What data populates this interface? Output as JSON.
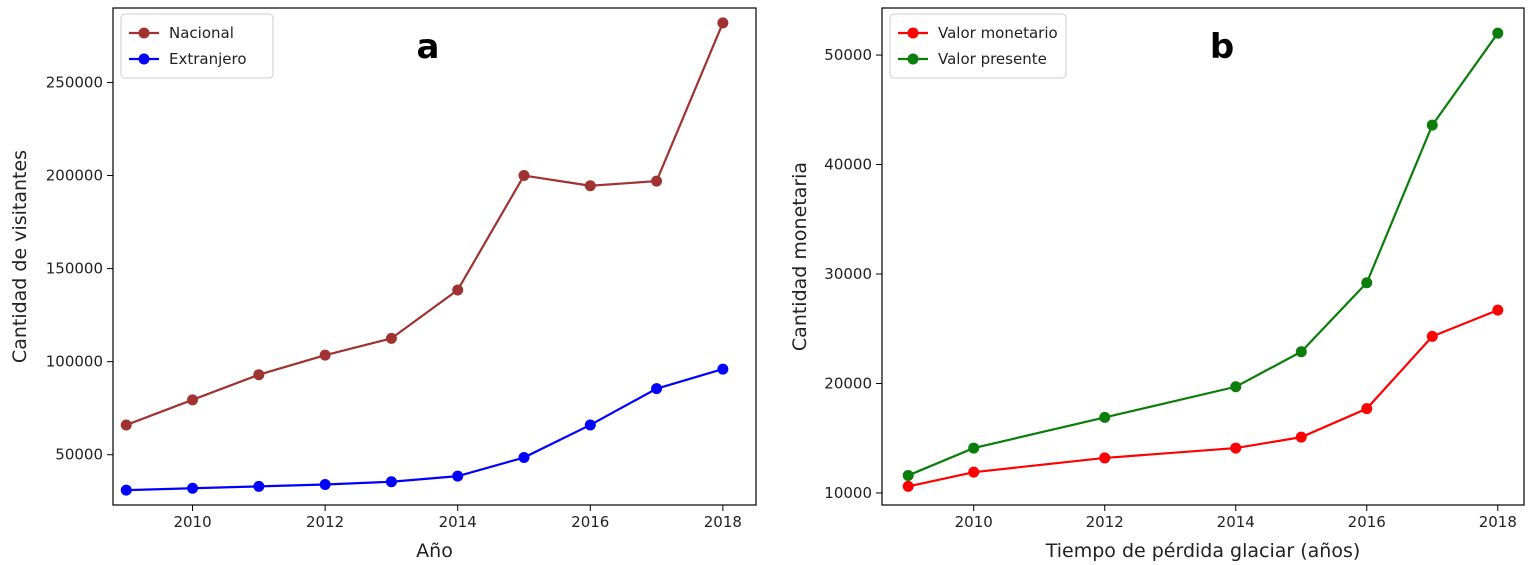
{
  "chart_data": [
    {
      "type": "line",
      "panel_label": "a",
      "xlabel": "Año",
      "ylabel": "Cantidad de visitantes",
      "xlim": [
        2008.8,
        2018.5
      ],
      "ylim": [
        23000,
        290000
      ],
      "x_ticks": [
        2010,
        2012,
        2014,
        2016,
        2018
      ],
      "y_ticks": [
        50000,
        100000,
        150000,
        200000,
        250000
      ],
      "grid": false,
      "legend_position": "top-left",
      "x": [
        2009,
        2010,
        2011,
        2012,
        2013,
        2014,
        2015,
        2016,
        2017,
        2018
      ],
      "series": [
        {
          "name": "Nacional",
          "color": "#a03232",
          "values": [
            66000,
            79500,
            93000,
            103500,
            112500,
            138500,
            200000,
            194500,
            197000,
            282000
          ]
        },
        {
          "name": "Extranjero",
          "color": "#0000ff",
          "values": [
            31000,
            32000,
            33000,
            34000,
            35500,
            38500,
            48500,
            66000,
            85500,
            96000
          ]
        }
      ]
    },
    {
      "type": "line",
      "panel_label": "b",
      "xlabel": "Tiempo de pérdida glaciar (años)",
      "ylabel": "Cantidad monetaria",
      "xlim": [
        2008.6,
        2018.4
      ],
      "ylim": [
        8900,
        54300
      ],
      "x_ticks": [
        2010,
        2012,
        2014,
        2016,
        2018
      ],
      "y_ticks": [
        10000,
        20000,
        30000,
        40000,
        50000
      ],
      "grid": false,
      "legend_position": "top-left",
      "x": [
        2009,
        2010,
        2012,
        2014,
        2015,
        2016,
        2017,
        2018
      ],
      "series": [
        {
          "name": "Valor monetario",
          "color": "#ff0000",
          "values": [
            10600,
            11900,
            13200,
            14100,
            15100,
            17700,
            24300,
            26700
          ]
        },
        {
          "name": "Valor presente",
          "color": "#0a7d0a",
          "values": [
            11600,
            14100,
            16900,
            19700,
            22900,
            29200,
            43600,
            52000
          ]
        }
      ]
    }
  ]
}
